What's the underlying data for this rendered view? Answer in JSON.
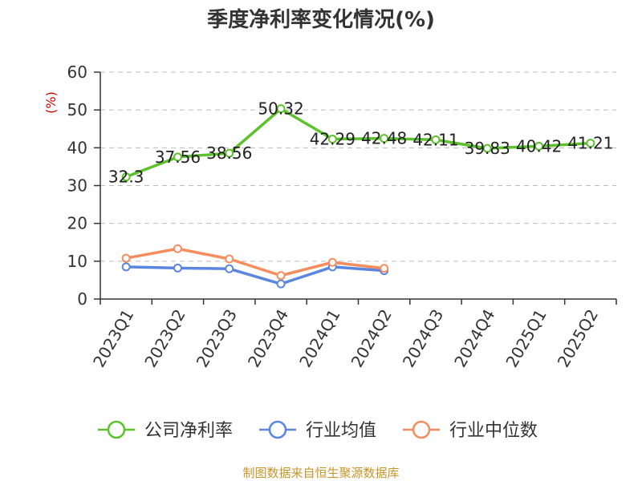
{
  "colors": {
    "company": "#5cc12a",
    "industry_avg": "#5b86e0",
    "industry_median": "#f58d5e",
    "source": "#c8952a",
    "unit": "#cc0000"
  },
  "chart_data": {
    "type": "line",
    "title": "季度净利率变化情况(%)",
    "ylabel": "(%)",
    "ylim": [
      0,
      60
    ],
    "yticks": [
      0,
      10,
      20,
      30,
      40,
      50,
      60
    ],
    "grid": true,
    "legend_position": "bottom",
    "categories": [
      "2023Q1",
      "2023Q2",
      "2023Q3",
      "2023Q4",
      "2024Q1",
      "2024Q2",
      "2024Q3",
      "2024Q4",
      "2025Q1",
      "2025Q2"
    ],
    "series": [
      {
        "name": "公司净利率",
        "values": [
          32.3,
          37.56,
          38.56,
          50.32,
          42.29,
          42.48,
          42.11,
          39.83,
          40.42,
          41.21
        ],
        "labels": [
          "32.3",
          "37.56",
          "38.56",
          "50.32",
          "42.29",
          "42.48",
          "42.11",
          "39.83",
          "40.42",
          "41.21"
        ]
      },
      {
        "name": "行业均值",
        "values": [
          8.5,
          8.2,
          8.0,
          4.0,
          8.5,
          7.5,
          null,
          null,
          null,
          null
        ]
      },
      {
        "name": "行业中位数",
        "values": [
          10.8,
          13.3,
          10.6,
          6.2,
          9.7,
          8.1,
          null,
          null,
          null,
          null
        ]
      }
    ]
  },
  "footer": {
    "source": "制图数据来自恒生聚源数据库"
  }
}
